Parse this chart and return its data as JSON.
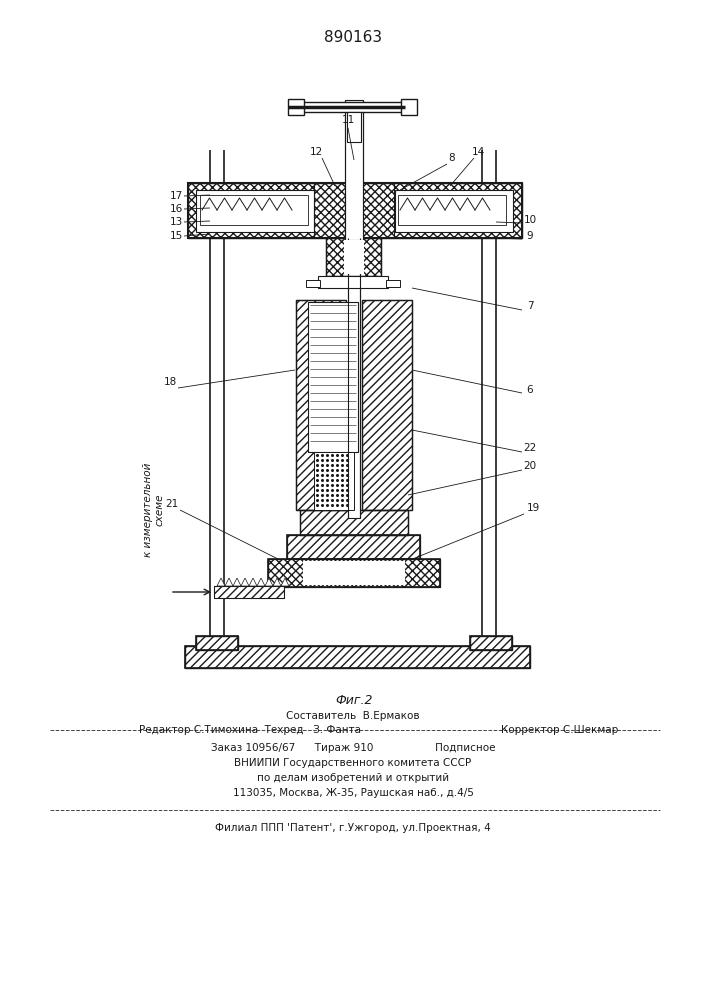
{
  "title": "890163",
  "line_color": "#1a1a1a",
  "bg_color": "#ffffff",
  "footer": {
    "sestavitel": "Составитель  В.Ермаков",
    "redaktor": "Редактор С.Тимохина  Техред   З. Фанта",
    "korrektor": "Корректор С.Шекмар",
    "zakaz": "Заказ 10956/67      Тираж 910                   Подписное",
    "vniiipi": "ВНИИПИ Государственного комитета СССР",
    "po_delam": "по делам изобретений и открытий",
    "address": "113035, Москва, Ж-35, Раушская наб., д.4/5",
    "filial": "Филиал ППП 'Патент', г.Ужгород, ул.Проектная, 4"
  },
  "fig_caption": "Фиг.2",
  "side_text_line1": "к измерительной",
  "side_text_line2": "схеме"
}
